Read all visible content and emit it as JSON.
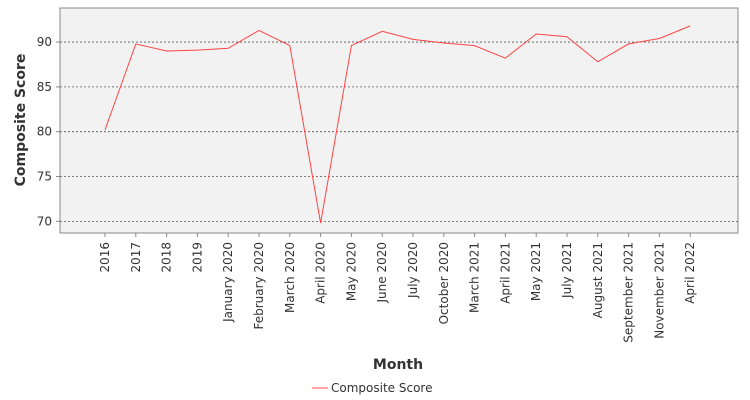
{
  "chart_data": {
    "type": "line",
    "title": "",
    "xlabel": "Month",
    "ylabel": "Composite Score",
    "categories": [
      "2016",
      "2017",
      "2018",
      "2019",
      "January 2020",
      "February 2020",
      "March 2020",
      "April 2020",
      "May 2020",
      "June 2020",
      "July 2020",
      "October 2020",
      "March 2021",
      "April 2021",
      "May 2021",
      "July 2021",
      "August 2021",
      "September 2021",
      "November 2021",
      "April 2022"
    ],
    "series": [
      {
        "name": "Composite Score",
        "color": "#ff4444",
        "values": [
          80.2,
          89.8,
          89.0,
          89.1,
          89.3,
          91.3,
          89.6,
          69.8,
          89.6,
          91.2,
          90.3,
          89.9,
          89.6,
          88.2,
          90.9,
          90.6,
          87.8,
          89.8,
          90.4,
          91.8
        ]
      }
    ],
    "yticks": [
      70,
      75,
      80,
      85,
      90
    ],
    "ylim": [
      68.7,
      93.8
    ],
    "grid": true,
    "legend_position": "bottom"
  }
}
